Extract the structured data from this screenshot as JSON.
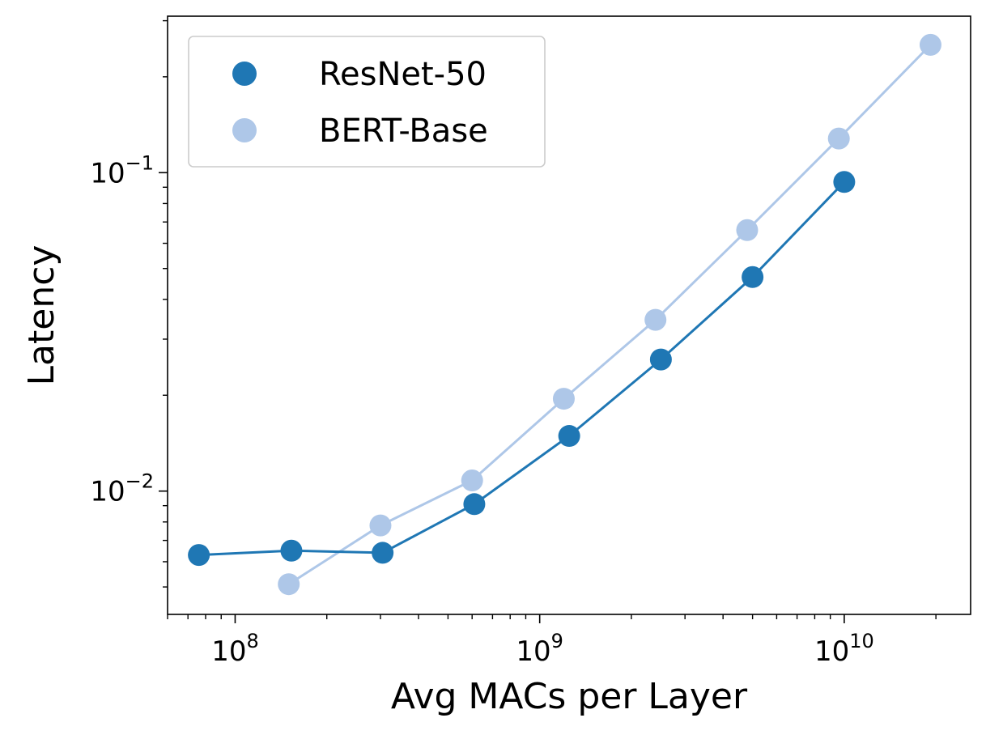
{
  "chart_data": {
    "type": "line",
    "xlabel": "Avg MACs per Layer",
    "ylabel": "Latency",
    "xscale": "log",
    "yscale": "log",
    "xlim": [
      60000000.0,
      26000000000.0
    ],
    "ylim": [
      0.0041,
      0.31
    ],
    "x_ticks": [
      {
        "value": 100000000.0,
        "base": "10",
        "exp": "8"
      },
      {
        "value": 1000000000.0,
        "base": "10",
        "exp": "9"
      },
      {
        "value": 10000000000.0,
        "base": "10",
        "exp": "10"
      }
    ],
    "y_ticks": [
      {
        "value": 0.01,
        "base": "10",
        "exp": "−2"
      },
      {
        "value": 0.1,
        "base": "10",
        "exp": "−1"
      }
    ],
    "legend": {
      "position": "upper-left"
    },
    "grid": false,
    "series": [
      {
        "name": "ResNet-50",
        "color": "#1f77b4",
        "x": [
          76000000.0,
          153000000.0,
          305000000.0,
          610000000.0,
          1250000000.0,
          2500000000.0,
          5000000000.0,
          10000000000.0
        ],
        "y": [
          0.0063,
          0.0065,
          0.0064,
          0.0091,
          0.0149,
          0.0259,
          0.047,
          0.0935
        ]
      },
      {
        "name": "BERT-Base",
        "color": "#aec7e8",
        "x": [
          150000000.0,
          300000000.0,
          600000000.0,
          1200000000.0,
          2400000000.0,
          4800000000.0,
          9600000000.0,
          19200000000.0
        ],
        "y": [
          0.0051,
          0.0078,
          0.0108,
          0.0195,
          0.0345,
          0.066,
          0.128,
          0.252
        ]
      }
    ]
  }
}
